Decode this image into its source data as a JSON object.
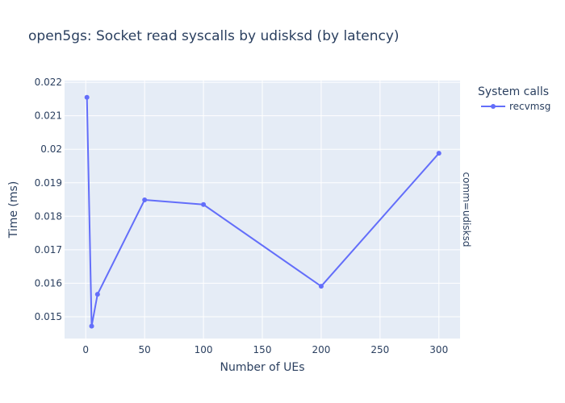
{
  "chart_data": {
    "type": "line",
    "title": "open5gs: Socket read syscalls by udisksd (by latency)",
    "xlabel": "Number of UEs",
    "ylabel": "Time (ms)",
    "xlim": [
      -18,
      318
    ],
    "ylim": [
      0.01435,
      0.02205
    ],
    "x_ticks": [
      0,
      50,
      100,
      150,
      200,
      250,
      300
    ],
    "x_tick_labels": [
      "0",
      "50",
      "100",
      "150",
      "200",
      "250",
      "300"
    ],
    "y_ticks": [
      0.015,
      0.016,
      0.017,
      0.018,
      0.019,
      0.02,
      0.021,
      0.022
    ],
    "y_tick_labels": [
      "0.015",
      "0.016",
      "0.017",
      "0.018",
      "0.019",
      "0.02",
      "0.021",
      "0.022"
    ],
    "grid": true,
    "legend": {
      "title": "System calls",
      "position": "top-right"
    },
    "facet_label": "comm=udisksd",
    "colors": {
      "plot_bg": "#e5ecf6",
      "grid": "#ffffff",
      "text": "#2a3f5f",
      "series": "#636efa"
    },
    "series": [
      {
        "name": "recvmsg",
        "color": "#636efa",
        "x": [
          1,
          5,
          10,
          50,
          100,
          200,
          300
        ],
        "y": [
          0.02155,
          0.01472,
          0.01567,
          0.01849,
          0.01835,
          0.01591,
          0.01988
        ]
      }
    ]
  }
}
